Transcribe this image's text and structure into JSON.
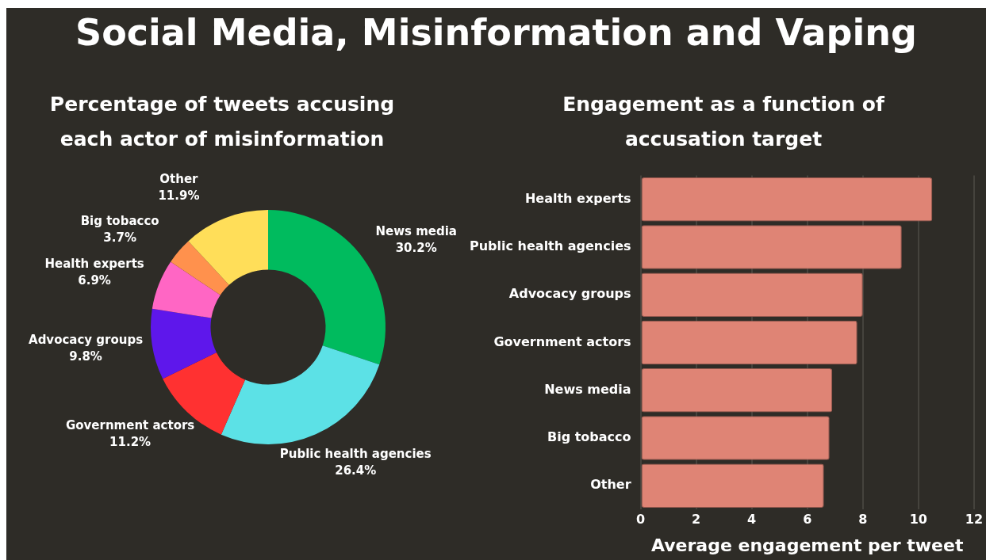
{
  "chart_data": [
    {
      "type": "other",
      "title": "Social Media, Misinformation and Vaping"
    },
    {
      "type": "donut",
      "title": "Percentage of tweets accusing each actor of misinformation",
      "categories": [
        "News media",
        "Public health agencies",
        "Government actors",
        "Advocacy groups",
        "Health experts",
        "Big tobacco",
        "Other"
      ],
      "values": [
        30.2,
        26.4,
        11.2,
        9.8,
        6.9,
        3.7,
        11.9
      ],
      "value_labels": [
        "30.2%",
        "26.4%",
        "11.2%",
        "9.8%",
        "6.9%",
        "3.7%",
        "11.9%"
      ],
      "colors": [
        "#00bb5e",
        "#5ce1e6",
        "#ff3131",
        "#5e17eb",
        "#ff66c4",
        "#ff914d",
        "#ffde59"
      ],
      "legend": false
    },
    {
      "type": "bar",
      "orientation": "horizontal",
      "title": "Engagement as a function of accusation target",
      "xlabel": "Average engagement per tweet",
      "categories": [
        "Health experts",
        "Public health agencies",
        "Advocacy groups",
        "Government actors",
        "News media",
        "Big tobacco",
        "Other"
      ],
      "values": [
        10.5,
        9.4,
        8.0,
        7.8,
        6.9,
        6.8,
        6.6
      ],
      "color": "#df8475",
      "xlim": [
        0,
        12
      ],
      "xticks": [
        0,
        2,
        4,
        6,
        8,
        10,
        12
      ],
      "grid": "x",
      "legend": false
    }
  ]
}
